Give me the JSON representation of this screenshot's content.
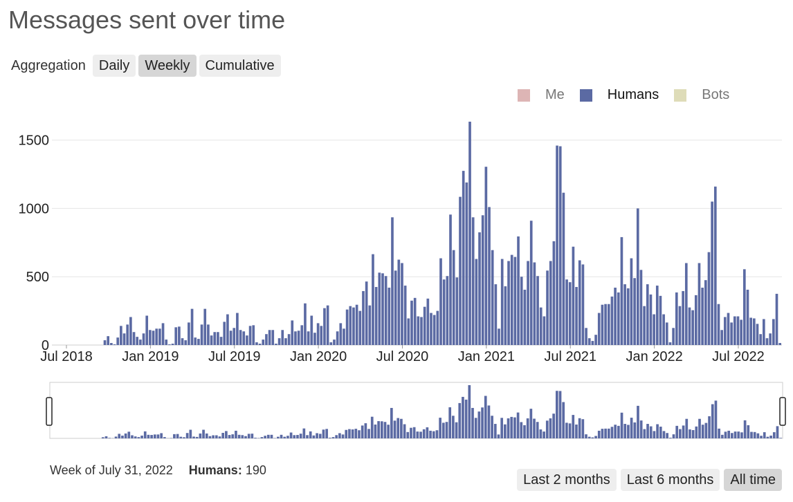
{
  "page": {
    "title": "Messages sent over time"
  },
  "aggregation": {
    "label": "Aggregation",
    "options": [
      {
        "label": "Daily",
        "active": false
      },
      {
        "label": "Weekly",
        "active": true
      },
      {
        "label": "Cumulative",
        "active": false
      }
    ]
  },
  "legend": [
    {
      "label": "Me",
      "color": "#ddb5b5",
      "enabled": false
    },
    {
      "label": "Humans",
      "color": "#5b6aa3",
      "enabled": true
    },
    {
      "label": "Bots",
      "color": "#dedcb8",
      "enabled": false
    }
  ],
  "tooltip": {
    "week": "Week of July 31, 2022",
    "series_label": "Humans:",
    "series_value": "190"
  },
  "range_buttons": [
    {
      "label": "Last 2 months",
      "active": false
    },
    {
      "label": "Last 6 months",
      "active": false
    },
    {
      "label": "All time",
      "active": true
    }
  ],
  "chart_data": {
    "type": "bar",
    "title": "Messages sent over time",
    "xlabel": "",
    "ylabel": "",
    "ylim": [
      0,
      1650
    ],
    "yticks": [
      0,
      500,
      1000,
      1500
    ],
    "xticks": [
      {
        "label": "Jul 2018",
        "week_index": 4
      },
      {
        "label": "Jan 2019",
        "week_index": 30
      },
      {
        "label": "Jul 2019",
        "week_index": 56
      },
      {
        "label": "Jan 2020",
        "week_index": 82
      },
      {
        "label": "Jul 2020",
        "week_index": 108
      },
      {
        "label": "Jan 2021",
        "week_index": 134
      },
      {
        "label": "Jul 2021",
        "week_index": 160
      },
      {
        "label": "Jan 2022",
        "week_index": 186
      },
      {
        "label": "Jul 2022",
        "week_index": 212
      }
    ],
    "grid": true,
    "legend_position": "top-right",
    "series": [
      {
        "name": "Humans",
        "color": "#5b6aa3",
        "values": [
          0,
          0,
          0,
          0,
          0,
          0,
          0,
          0,
          0,
          0,
          0,
          0,
          0,
          0,
          0,
          0,
          35,
          65,
          15,
          5,
          55,
          140,
          85,
          150,
          205,
          95,
          60,
          40,
          85,
          215,
          110,
          105,
          120,
          120,
          160,
          40,
          5,
          10,
          130,
          135,
          50,
          35,
          165,
          265,
          55,
          45,
          150,
          265,
          150,
          70,
          95,
          95,
          60,
          170,
          225,
          105,
          125,
          235,
          110,
          100,
          70,
          140,
          145,
          20,
          10,
          40,
          80,
          110,
          110,
          10,
          50,
          110,
          50,
          80,
          180,
          100,
          105,
          145,
          305,
          100,
          215,
          90,
          160,
          140,
          270,
          290,
          20,
          40,
          100,
          160,
          120,
          260,
          285,
          275,
          295,
          250,
          395,
          465,
          290,
          665,
          425,
          530,
          525,
          505,
          420,
          935,
          545,
          625,
          600,
          435,
          195,
          325,
          345,
          210,
          205,
          280,
          340,
          235,
          220,
          250,
          635,
          480,
          505,
          955,
          695,
          495,
          1085,
          1275,
          1190,
          1635,
          935,
          630,
          825,
          950,
          1305,
          1010,
          695,
          445,
          120,
          630,
          430,
          615,
          660,
          645,
          795,
          500,
          405,
          615,
          910,
          605,
          505,
          275,
          210,
          545,
          615,
          760,
          1460,
          1455,
          1115,
          480,
          460,
          720,
          425,
          620,
          590,
          125,
          50,
          30,
          75,
          235,
          295,
          300,
          300,
          355,
          420,
          385,
          790,
          445,
          415,
          635,
          490,
          1000,
          550,
          285,
          445,
          370,
          225,
          435,
          360,
          225,
          165,
          20,
          125,
          385,
          285,
          395,
          600,
          275,
          255,
          365,
          600,
          420,
          475,
          680,
          1050,
          1160,
          300,
          110,
          205,
          235,
          165,
          210,
          210,
          185,
          555,
          405,
          200,
          195,
          155,
          80,
          190,
          50,
          85,
          190,
          375,
          15
        ]
      }
    ]
  }
}
